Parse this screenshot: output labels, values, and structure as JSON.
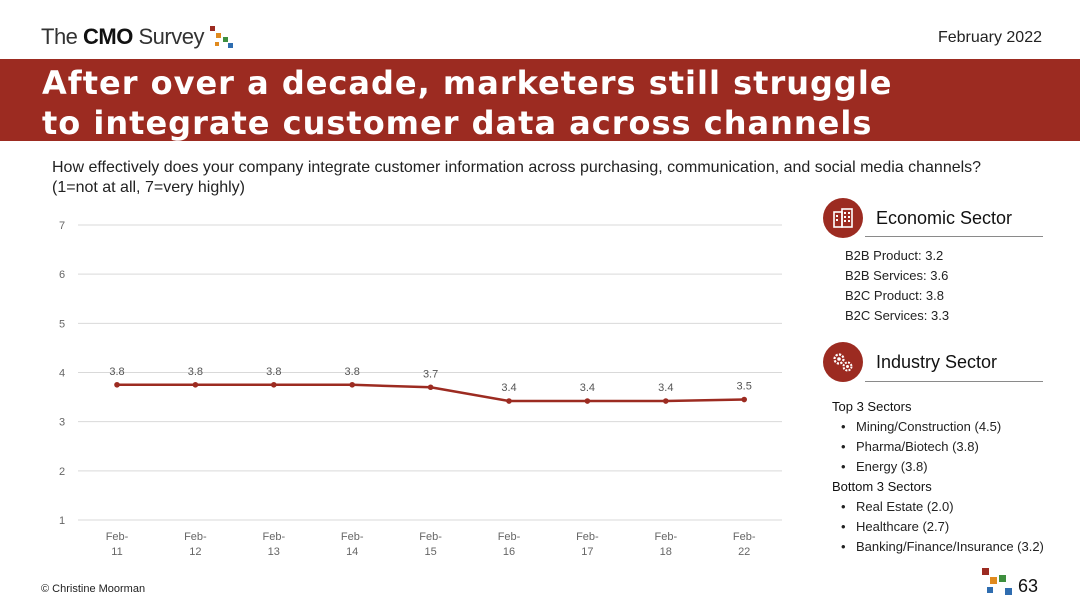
{
  "header": {
    "logo_text_pre": "The ",
    "logo_text_bold": "CMO",
    "logo_text_post": " Survey",
    "date": "February 2022"
  },
  "banner": {
    "title": "After over a decade, marketers still struggle to integrate customer data across channels"
  },
  "question": "How effectively does your company integrate customer information across purchasing, communication, and social media channels? (1=not at all, 7=very highly)",
  "chart_data": {
    "type": "line",
    "categories": [
      [
        "Feb-",
        "11"
      ],
      [
        "Feb-",
        "12"
      ],
      [
        "Feb-",
        "13"
      ],
      [
        "Feb-",
        "14"
      ],
      [
        "Feb-",
        "15"
      ],
      [
        "Feb-",
        "16"
      ],
      [
        "Feb-",
        "17"
      ],
      [
        "Feb-",
        "18"
      ],
      [
        "Feb-",
        "22"
      ]
    ],
    "series": [
      {
        "values": [
          3.75,
          3.75,
          3.75,
          3.75,
          3.7,
          3.42,
          3.42,
          3.42,
          3.45
        ],
        "labels": [
          "3.8",
          "3.8",
          "3.8",
          "3.8",
          "3.7",
          "3.4",
          "3.4",
          "3.4",
          "3.5"
        ],
        "color": "#9c2b21"
      }
    ],
    "ylim": [
      1,
      7
    ],
    "yticks": [
      "1",
      "2",
      "3",
      "4",
      "5",
      "6",
      "7"
    ],
    "grid": true,
    "title": "",
    "xlabel": "",
    "ylabel": ""
  },
  "economic_sector": {
    "title": "Economic Sector",
    "icon": "building-icon",
    "items": [
      "B2B Product: 3.2",
      "B2B Services: 3.6",
      "B2C Product: 3.8",
      "B2C Services: 3.3"
    ]
  },
  "industry_sector": {
    "title": "Industry Sector",
    "icon": "gears-icon",
    "top_label": "Top 3 Sectors",
    "top": [
      "Mining/Construction (4.5)",
      "Pharma/Biotech (3.8)",
      "Energy (3.8)"
    ],
    "bottom_label": "Bottom 3 Sectors",
    "bottom": [
      "Real Estate (2.0)",
      "Healthcare (2.7)",
      "Banking/Finance/Insurance (3.2)"
    ]
  },
  "footer": {
    "copyright": "© Christine Moorman",
    "page_number": "63"
  },
  "colors": {
    "accent": "#9c2b21",
    "logo_green": "#3e8f3e",
    "logo_orange": "#e08a1e",
    "logo_blue": "#2f6db0"
  }
}
